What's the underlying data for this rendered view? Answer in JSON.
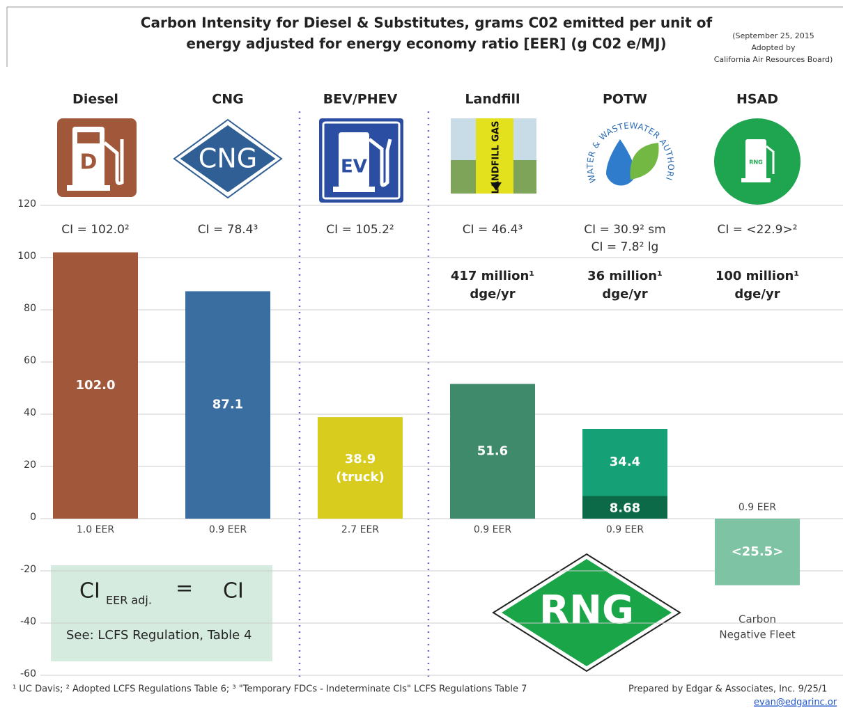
{
  "title": [
    "Carbon Intensity for Diesel & Substitutes, grams C02 emitted per unit of",
    "energy adjusted for energy economy ratio [EER] (g C02 e/MJ)"
  ],
  "note": [
    "(September 25, 2015",
    "Adopted by",
    "California Air Resources Board)"
  ],
  "chart_data": {
    "type": "bar",
    "categories": [
      "Diesel",
      "CNG",
      "BEV/PHEV",
      "Landfill",
      "POTW",
      "HSAD"
    ],
    "values": [
      102.0,
      87.1,
      38.9,
      51.6,
      34.4,
      -25.5
    ],
    "value_labels": [
      "102.0",
      "87.1",
      "38.9",
      "51.6",
      "34.4",
      "<25.5>"
    ],
    "value_notes": [
      null,
      null,
      "(truck)",
      null,
      null,
      null
    ],
    "colors": [
      "#a0573a",
      "#3a6ea0",
      "#d8cd1f",
      "#3f8a6a",
      "#16a075",
      "#7dc3a4"
    ],
    "overlay": {
      "values": [
        null,
        null,
        null,
        null,
        8.68,
        null
      ],
      "color": "#0c6a48"
    },
    "ci_labels": [
      [
        "CI = 102.0²"
      ],
      [
        "CI = 78.4³"
      ],
      [
        "CI = 105.2²"
      ],
      [
        "CI = 46.4³"
      ],
      [
        "CI = 30.9² sm",
        "CI = 7.8² lg"
      ],
      [
        "CI = <22.9>²"
      ]
    ],
    "volumes": [
      null,
      null,
      null,
      [
        "417 million¹",
        "dge/yr"
      ],
      [
        "36 million¹",
        "dge/yr"
      ],
      [
        "100 million¹",
        "dge/yr"
      ]
    ],
    "eer_labels": [
      "1.0 EER",
      "0.9 EER",
      "2.7 EER",
      "0.9 EER",
      "0.9 EER",
      "0.9 EER"
    ],
    "ylim": [
      -60,
      120
    ],
    "yticks": [
      -60,
      -40,
      -20,
      0,
      20,
      40,
      60,
      80,
      100,
      120
    ],
    "grid": true
  },
  "icons": [
    "D",
    "CNG",
    "EV",
    "LANDFILL GAS",
    "WATER & WASTEWATER AUTHORITY",
    "RNG"
  ],
  "formula": {
    "lhs": "CI",
    "subscript": "EER adj.",
    "equals": "=",
    "rhs": "CI",
    "note": "See: LCFS Regulation, Table 4"
  },
  "badge": "RNG",
  "badge_caption": [
    "Carbon",
    "Negative Fleet"
  ],
  "footnote": "¹ UC Davis; ² Adopted LCFS Regulations Table 6; ³ \"Temporary FDCs - Indeterminate CIs\" LCFS Regulations Table 7",
  "credit": "Prepared by Edgar & Associates, Inc. 9/25/1",
  "email": "evan@edgarinc.or"
}
